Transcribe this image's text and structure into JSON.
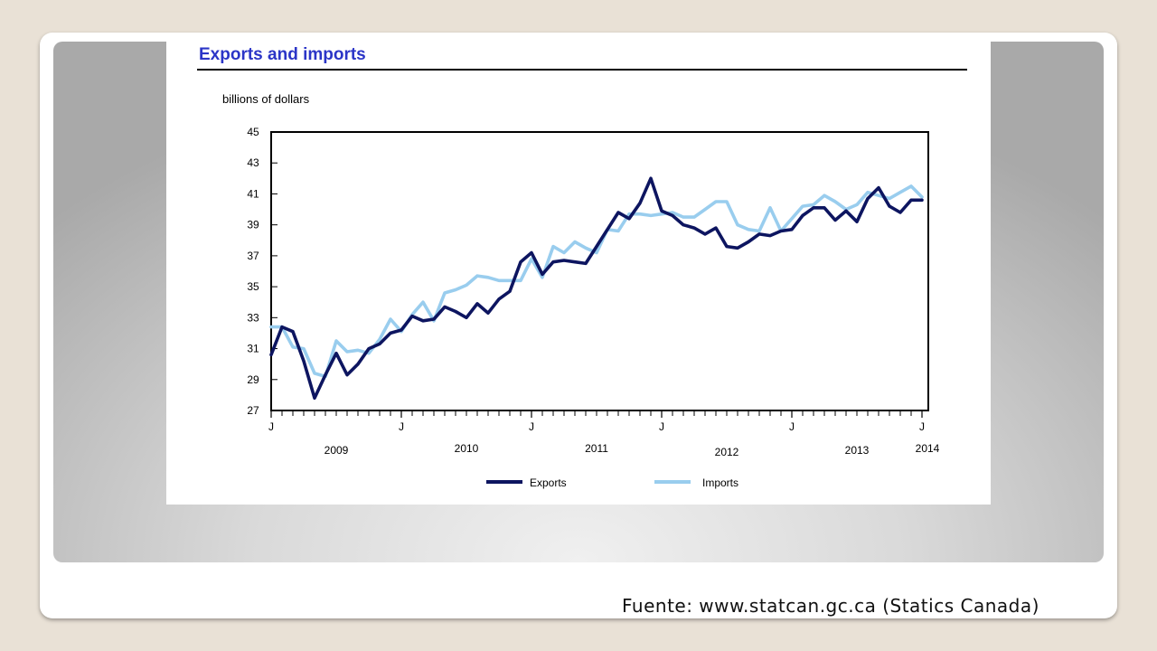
{
  "source": "Fuente:  www.statcan.gc.ca (Statics Canada)",
  "colors": {
    "exports": "#0d1560",
    "imports": "#99cdee",
    "title": "#2b35c7"
  },
  "chart_data": {
    "type": "line",
    "title": "Exports and imports",
    "ylabel": "billions of dollars",
    "ylim": [
      27,
      45
    ],
    "yticks": [
      27,
      29,
      31,
      33,
      35,
      37,
      39,
      41,
      43,
      45
    ],
    "x_start": "2009-01",
    "x_end": "2014-01",
    "x_tick_labels": [
      {
        "month": "2009-01",
        "label": "J"
      },
      {
        "month": "2010-01",
        "label": "J"
      },
      {
        "month": "2011-01",
        "label": "J"
      },
      {
        "month": "2012-01",
        "label": "J"
      },
      {
        "month": "2013-01",
        "label": "J"
      },
      {
        "month": "2014-01",
        "label": "J"
      }
    ],
    "year_labels": [
      "2009",
      "2010",
      "2011",
      "2012",
      "2013",
      "2014"
    ],
    "grid": false,
    "legend": "bottom",
    "series": [
      {
        "name": "Exports",
        "values": [
          30.6,
          32.4,
          32.1,
          30.2,
          27.8,
          29.3,
          30.7,
          29.3,
          30.0,
          31.0,
          31.3,
          32.0,
          32.2,
          33.1,
          32.8,
          32.9,
          33.7,
          33.4,
          33.0,
          33.9,
          33.3,
          34.2,
          34.7,
          36.6,
          37.2,
          35.8,
          36.6,
          36.7,
          36.6,
          36.5,
          37.6,
          38.7,
          39.8,
          39.4,
          40.4,
          42.0,
          39.9,
          39.6,
          39.0,
          38.8,
          38.4,
          38.8,
          37.6,
          37.5,
          37.9,
          38.4,
          38.3,
          38.6,
          38.7,
          39.6,
          40.1,
          40.1,
          39.3,
          39.9,
          39.2,
          40.7,
          41.4,
          40.2,
          39.8,
          40.6,
          40.6
        ],
        "color": "#0d1560"
      },
      {
        "name": "Imports",
        "values": [
          32.4,
          32.4,
          31.1,
          31.0,
          29.4,
          29.2,
          31.5,
          30.8,
          30.9,
          30.7,
          31.6,
          32.9,
          32.1,
          33.2,
          34.0,
          32.8,
          34.6,
          34.8,
          35.1,
          35.7,
          35.6,
          35.4,
          35.4,
          35.4,
          36.8,
          35.6,
          37.6,
          37.2,
          37.9,
          37.5,
          37.2,
          38.7,
          38.6,
          39.7,
          39.7,
          39.6,
          39.7,
          39.8,
          39.5,
          39.5,
          40.0,
          40.5,
          40.5,
          39.0,
          38.7,
          38.6,
          40.1,
          38.6,
          39.4,
          40.2,
          40.3,
          40.9,
          40.5,
          40.0,
          40.3,
          41.1,
          40.9,
          40.7,
          41.1,
          41.5,
          40.8
        ],
        "color": "#99cdee"
      }
    ]
  }
}
